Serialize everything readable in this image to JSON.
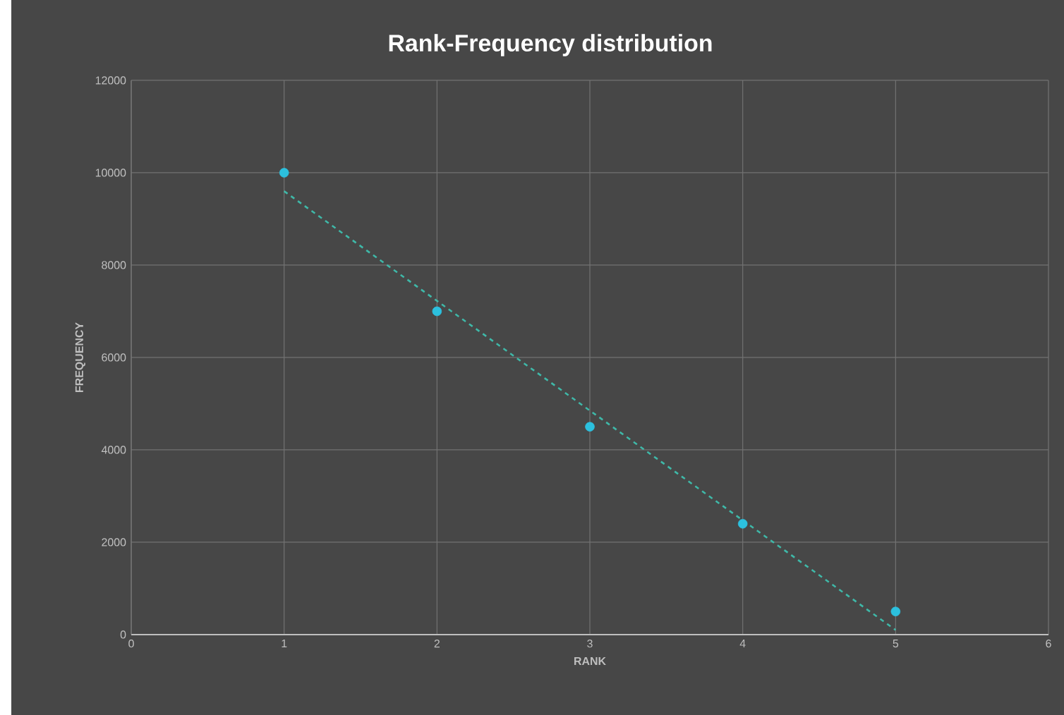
{
  "chart_data": {
    "type": "scatter",
    "title": "Rank-Frequency distribution",
    "xlabel": "RANK",
    "ylabel": "FREQUENCY",
    "xlim": [
      0,
      6
    ],
    "xticks": [
      0,
      1,
      2,
      3,
      4,
      5,
      6
    ],
    "ylim": [
      0,
      12000
    ],
    "yticks": [
      0,
      2000,
      4000,
      6000,
      8000,
      10000,
      12000
    ],
    "grid": true,
    "series": [
      {
        "color": "#2cc0de",
        "marker": "circle",
        "x": [
          1,
          2,
          3,
          4,
          5
        ],
        "values": [
          10000,
          7000,
          4500,
          2400,
          500
        ]
      },
      {
        "type": "line",
        "color": "#3fb8a8",
        "line_style": "dashed",
        "marker": "none",
        "x": [
          1,
          5
        ],
        "values": [
          9600,
          100
        ]
      }
    ]
  }
}
